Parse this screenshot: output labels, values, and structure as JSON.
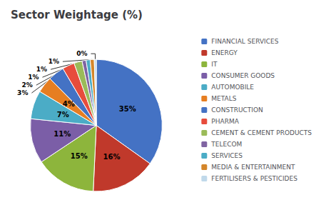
{
  "chart_data": {
    "type": "pie",
    "title": "Sector Weightage (%)",
    "categories": [
      "FINANCIAL SERVICES",
      "ENERGY",
      "IT",
      "CONSUMER GOODS",
      "AUTOMOBILE",
      "METALS",
      "CONSTRUCTION",
      "PHARMA",
      "CEMENT & CEMENT PRODUCTS",
      "TELECOM",
      "SERVICES",
      "MEDIA & ENTERTAINMENT",
      "FERTILISERS & PESTICIDES"
    ],
    "values": [
      35,
      16,
      15,
      11,
      7,
      4,
      4,
      3,
      2,
      1,
      1,
      1,
      0.5
    ],
    "value_labels": [
      "35%",
      "16%",
      "15%",
      "11%",
      "7%",
      "4%",
      "4%",
      "3%",
      "2%",
      "1%",
      "1%",
      "1%",
      "0%"
    ],
    "colors": [
      "#4472C4",
      "#C0392B",
      "#8DB53C",
      "#7B5EA7",
      "#4BACC6",
      "#E67E22",
      "#4472C4",
      "#E74C3C",
      "#9BBB59",
      "#8064A2",
      "#4BACC6",
      "#D4862A",
      "#C0D9EA"
    ],
    "data_labels": true,
    "legend": "right"
  }
}
